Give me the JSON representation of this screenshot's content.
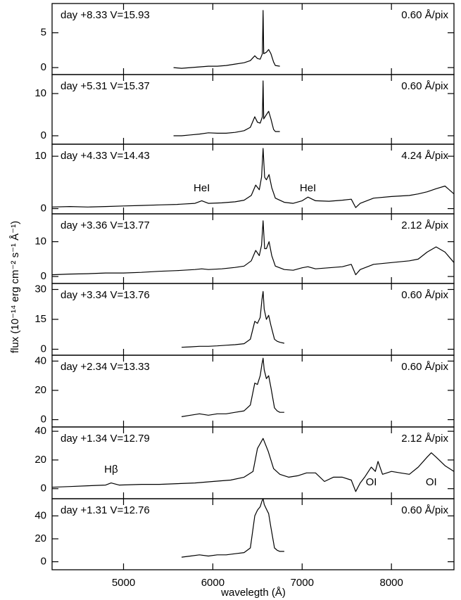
{
  "ylabel": "flux (10⁻¹⁴ erg cm⁻² s⁻¹ Å⁻¹)",
  "xlabel": "wavelegth (Å)",
  "chart_data": [
    {
      "type": "line",
      "title": "day +8.33 V=15.93",
      "resolution": "0.60 Å/pix",
      "color": "#000000",
      "x": [
        5560,
        5650,
        5750,
        5850,
        5950,
        6050,
        6150,
        6250,
        6350,
        6420,
        6470,
        6500,
        6530,
        6555,
        6563,
        6570,
        6600,
        6625,
        6650,
        6680,
        6700,
        6750
      ],
      "values": [
        0,
        -0.1,
        0,
        0.1,
        0.2,
        0.2,
        0.3,
        0.5,
        0.7,
        1.0,
        1.7,
        1.3,
        1.2,
        2.0,
        8.2,
        2.0,
        2.2,
        2.6,
        2.0,
        0.8,
        0.3,
        0.2
      ],
      "xlim": [
        4200,
        8700
      ],
      "ylim": [
        -1,
        9.2
      ],
      "yticks": [
        0,
        5
      ]
    },
    {
      "type": "line",
      "title": "day +5.31 V=15.37",
      "resolution": "0.60 Å/pix",
      "color": "#000000",
      "x": [
        5560,
        5650,
        5750,
        5850,
        5950,
        6050,
        6150,
        6250,
        6350,
        6420,
        6470,
        6500,
        6530,
        6555,
        6563,
        6570,
        6600,
        6625,
        6650,
        6680,
        6700,
        6750
      ],
      "values": [
        0,
        0,
        0.2,
        0.4,
        0.7,
        0.6,
        0.6,
        0.8,
        1.2,
        2.0,
        4.5,
        3.2,
        3.0,
        4.5,
        13,
        4.0,
        5.0,
        5.8,
        4.0,
        1.5,
        1.0,
        1.0
      ],
      "xlim": [
        4200,
        8700
      ],
      "ylim": [
        -2,
        14.5
      ],
      "yticks": [
        0,
        10
      ]
    },
    {
      "type": "line",
      "title": "day +4.33 V=14.43",
      "resolution": "4.24 Å/pix",
      "color": "#000000",
      "x": [
        4200,
        4400,
        4600,
        4800,
        5000,
        5200,
        5400,
        5600,
        5800,
        5876,
        5950,
        6100,
        6250,
        6350,
        6430,
        6480,
        6520,
        6545,
        6563,
        6580,
        6600,
        6630,
        6660,
        6700,
        6800,
        6900,
        7000,
        7065,
        7150,
        7300,
        7450,
        7550,
        7600,
        7650,
        7800,
        8000,
        8200,
        8300,
        8400,
        8500,
        8600,
        8700
      ],
      "values": [
        0.3,
        0.4,
        0.3,
        0.4,
        0.5,
        0.6,
        0.7,
        0.8,
        1.0,
        1.5,
        1.0,
        1.1,
        1.3,
        1.6,
        2.5,
        4.5,
        3.6,
        6,
        11.5,
        6,
        5.5,
        6.5,
        4,
        2,
        1.2,
        1.0,
        1.5,
        2.2,
        1.5,
        1.4,
        1.6,
        1.8,
        0.2,
        1.0,
        2.0,
        2.3,
        2.5,
        2.8,
        3.2,
        3.8,
        4.3,
        2.8
      ],
      "xlim": [
        4200,
        8700
      ],
      "ylim": [
        -1,
        12.3
      ],
      "yticks": [
        0,
        10
      ],
      "annotations": [
        {
          "text": "HeI",
          "x": 5876
        },
        {
          "text": "HeI",
          "x": 7065
        }
      ]
    },
    {
      "type": "line",
      "title": "day +3.36 V=13.77",
      "resolution": "2.12 Å/pix",
      "color": "#000000",
      "x": [
        4200,
        4400,
        4600,
        4800,
        5000,
        5200,
        5400,
        5600,
        5800,
        5876,
        5950,
        6100,
        6250,
        6350,
        6430,
        6480,
        6520,
        6545,
        6563,
        6580,
        6600,
        6630,
        6660,
        6700,
        6800,
        6900,
        7000,
        7065,
        7150,
        7300,
        7450,
        7550,
        7600,
        7650,
        7800,
        8000,
        8200,
        8300,
        8400,
        8500,
        8600,
        8700
      ],
      "values": [
        0.5,
        0.7,
        0.8,
        1.0,
        1.0,
        1.2,
        1.5,
        1.7,
        2.0,
        2.2,
        2.0,
        2.2,
        2.6,
        3.0,
        4.5,
        7.5,
        6,
        9,
        16,
        8,
        8,
        10,
        6,
        3,
        2,
        1.8,
        2.5,
        2.8,
        2.2,
        2.5,
        2.8,
        3.5,
        0.5,
        2.0,
        3.5,
        4,
        4.5,
        5,
        7,
        8.5,
        7,
        4
      ],
      "xlim": [
        4200,
        8700
      ],
      "ylim": [
        -2,
        18
      ],
      "yticks": [
        0,
        10
      ]
    },
    {
      "type": "line",
      "title": "day +3.34 V=13.76",
      "resolution": "0.60 Å/pix",
      "color": "#000000",
      "x": [
        5650,
        5750,
        5850,
        5950,
        6050,
        6150,
        6250,
        6350,
        6420,
        6470,
        6500,
        6530,
        6550,
        6563,
        6575,
        6600,
        6625,
        6650,
        6690,
        6720,
        6750,
        6800
      ],
      "values": [
        1,
        1.2,
        1.5,
        1.5,
        1.7,
        2,
        2.3,
        2.8,
        5,
        14,
        13,
        16,
        25,
        29,
        20,
        15,
        17,
        12,
        5,
        4,
        3.5,
        3
      ],
      "xlim": [
        4200,
        8700
      ],
      "ylim": [
        -3,
        33
      ],
      "yticks": [
        0,
        15,
        30
      ]
    },
    {
      "type": "line",
      "title": "day +2.34 V=13.33",
      "resolution": "0.60 Å/pix",
      "color": "#000000",
      "x": [
        5650,
        5750,
        5850,
        5950,
        6050,
        6150,
        6250,
        6350,
        6420,
        6470,
        6500,
        6530,
        6550,
        6563,
        6575,
        6600,
        6625,
        6650,
        6690,
        6720,
        6750,
        6800
      ],
      "values": [
        2,
        3,
        4,
        3,
        4,
        4,
        5,
        6,
        10,
        25,
        24,
        30,
        38,
        42,
        34,
        28,
        30,
        22,
        8,
        6,
        5,
        5
      ],
      "xlim": [
        4200,
        8700
      ],
      "ylim": [
        -5,
        44
      ],
      "yticks": [
        0,
        20,
        40
      ]
    },
    {
      "type": "line",
      "title": "day +1.34 V=12.79",
      "resolution": "2.12 Å/pix",
      "color": "#000000",
      "x": [
        4200,
        4400,
        4600,
        4800,
        4861,
        4950,
        5200,
        5400,
        5600,
        5800,
        6000,
        6200,
        6350,
        6450,
        6500,
        6563,
        6620,
        6680,
        6750,
        6850,
        6950,
        7050,
        7150,
        7250,
        7350,
        7450,
        7550,
        7600,
        7650,
        7700,
        7774,
        7820,
        7850,
        7900,
        8000,
        8100,
        8200,
        8300,
        8400,
        8446,
        8500,
        8600,
        8700
      ],
      "values": [
        1,
        1.5,
        2,
        2.5,
        4,
        2.5,
        3,
        3,
        3.5,
        4,
        5,
        6,
        8,
        12,
        28,
        35,
        26,
        14,
        10,
        8,
        9,
        11,
        11,
        5,
        8,
        8,
        6,
        -2,
        4,
        8,
        15,
        12,
        19,
        10,
        12,
        11,
        10,
        15,
        22,
        25,
        22,
        16,
        12
      ],
      "xlim": [
        4200,
        8700
      ],
      "ylim": [
        -7,
        43
      ],
      "yticks": [
        0,
        20,
        40
      ],
      "annotations": [
        {
          "text": "Hβ",
          "x": 4861
        },
        {
          "text": "OI",
          "x": 7774
        },
        {
          "text": "OI",
          "x": 8446
        }
      ]
    },
    {
      "type": "line",
      "title": "day +1.31 V=12.76",
      "resolution": "0.60 Å/pix",
      "color": "#000000",
      "x": [
        5650,
        5750,
        5850,
        5950,
        6050,
        6150,
        6250,
        6350,
        6420,
        6470,
        6500,
        6530,
        6550,
        6563,
        6575,
        6600,
        6625,
        6650,
        6690,
        6720,
        6750,
        6800
      ],
      "values": [
        4,
        5,
        6,
        5,
        6,
        6,
        7,
        8,
        12,
        40,
        45,
        48,
        53,
        55,
        50,
        46,
        42,
        30,
        12,
        10,
        9,
        9
      ],
      "xlim": [
        4200,
        8700
      ],
      "ylim": [
        -7,
        55
      ],
      "yticks": [
        0,
        20,
        40
      ],
      "xticks": [
        5000,
        6000,
        7000,
        8000
      ]
    }
  ]
}
